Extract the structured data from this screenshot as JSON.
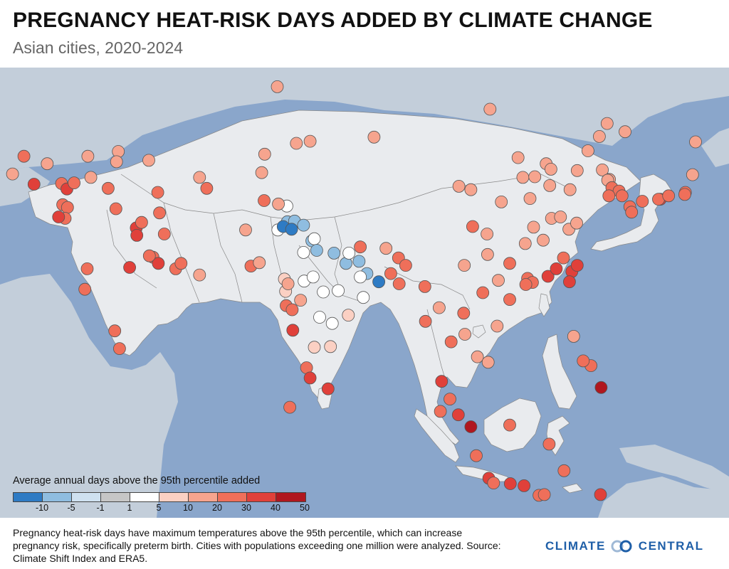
{
  "header": {
    "title": "PREGNANCY HEAT-RISK DAYS ADDED BY CLIMATE CHANGE",
    "subtitle": "Asian cities, 2020-2024"
  },
  "legend": {
    "title": "Average annual days above the 95th percentile added",
    "ticks": [
      "-10",
      "-5",
      "-1",
      "1",
      "5",
      "10",
      "20",
      "30",
      "40",
      "50"
    ],
    "colors": [
      "#2e7bc4",
      "#8fbde0",
      "#cfe1f0",
      "#c6c6c6",
      "#ffffff",
      "#fbd0c3",
      "#f6a48e",
      "#ef6f5a",
      "#e0403a",
      "#b0171f"
    ]
  },
  "footnote": {
    "text": "Pregnancy heat-risk days have maximum temperatures above the 95th percentile, which can increase pregnancy risk, specifically preterm birth. Cities with populations exceeding one million were analyzed. Source: Climate Shift Index and ERA5."
  },
  "logo": {
    "left": "CLIMATE",
    "right": "CENTRAL",
    "brand_color": "#1f5fa8"
  },
  "map": {
    "ocean_color": "#8aa6cb",
    "focus_land_color": "#e9ebee",
    "outside_land_color": "#c3ceda",
    "border_color": "#888888",
    "cities": [
      {
        "lon": 71.4,
        "lat": 51.2,
        "v": 12
      },
      {
        "lon": 76.9,
        "lat": 43.2,
        "v": 12
      },
      {
        "lon": 69.3,
        "lat": 41.3,
        "v": 11
      },
      {
        "lon": 58.4,
        "lat": 37.9,
        "v": 15
      },
      {
        "lon": 68.8,
        "lat": 38.6,
        "v": 14
      },
      {
        "lon": 74.6,
        "lat": 42.9,
        "v": 12
      },
      {
        "lon": 107,
        "lat": 47.9,
        "v": 14
      },
      {
        "lon": 87.6,
        "lat": 43.8,
        "v": 11
      },
      {
        "lon": 29.0,
        "lat": 41.0,
        "v": 22
      },
      {
        "lon": 32.9,
        "lat": 39.9,
        "v": 15
      },
      {
        "lon": 27.1,
        "lat": 38.4,
        "v": 18
      },
      {
        "lon": 30.7,
        "lat": 36.9,
        "v": 30
      },
      {
        "lon": 35.3,
        "lat": 37.0,
        "v": 28
      },
      {
        "lon": 36.2,
        "lat": 36.2,
        "v": 30
      },
      {
        "lon": 37.4,
        "lat": 37.1,
        "v": 22
      },
      {
        "lon": 40.2,
        "lat": 37.9,
        "v": 18
      },
      {
        "lon": 39.7,
        "lat": 41.0,
        "v": 16
      },
      {
        "lon": 44.8,
        "lat": 41.7,
        "v": 17
      },
      {
        "lon": 44.5,
        "lat": 40.2,
        "v": 18
      },
      {
        "lon": 49.9,
        "lat": 40.4,
        "v": 14
      },
      {
        "lon": 35.5,
        "lat": 33.9,
        "v": 28
      },
      {
        "lon": 36.3,
        "lat": 33.5,
        "v": 26
      },
      {
        "lon": 35.9,
        "lat": 31.9,
        "v": 25
      },
      {
        "lon": 34.8,
        "lat": 32.1,
        "v": 32
      },
      {
        "lon": 44.4,
        "lat": 33.3,
        "v": 24
      },
      {
        "lon": 43.1,
        "lat": 36.3,
        "v": 20
      },
      {
        "lon": 47.8,
        "lat": 30.5,
        "v": 30
      },
      {
        "lon": 51.4,
        "lat": 35.7,
        "v": 22
      },
      {
        "lon": 59.6,
        "lat": 36.3,
        "v": 22
      },
      {
        "lon": 51.7,
        "lat": 32.7,
        "v": 25
      },
      {
        "lon": 52.5,
        "lat": 29.6,
        "v": 25
      },
      {
        "lon": 48.7,
        "lat": 31.3,
        "v": 28
      },
      {
        "lon": 47.9,
        "lat": 29.4,
        "v": 30
      },
      {
        "lon": 50.6,
        "lat": 26.2,
        "v": 28
      },
      {
        "lon": 51.5,
        "lat": 25.3,
        "v": 30
      },
      {
        "lon": 54.4,
        "lat": 24.5,
        "v": 28
      },
      {
        "lon": 55.3,
        "lat": 25.3,
        "v": 26
      },
      {
        "lon": 58.4,
        "lat": 23.6,
        "v": 10
      },
      {
        "lon": 46.7,
        "lat": 24.7,
        "v": 30
      },
      {
        "lon": 39.2,
        "lat": 21.5,
        "v": 28
      },
      {
        "lon": 39.6,
        "lat": 24.5,
        "v": 26
      },
      {
        "lon": 44.2,
        "lat": 15.4,
        "v": 22
      },
      {
        "lon": 45.0,
        "lat": 12.8,
        "v": 22
      },
      {
        "lon": 50.0,
        "lat": 26.4,
        "v": 26
      },
      {
        "lon": 67.0,
        "lat": 24.9,
        "v": 22
      },
      {
        "lon": 68.4,
        "lat": 25.4,
        "v": 18
      },
      {
        "lon": 71.5,
        "lat": 30.2,
        "v": 2
      },
      {
        "lon": 73.1,
        "lat": 31.4,
        "v": -3
      },
      {
        "lon": 74.3,
        "lat": 31.5,
        "v": -2
      },
      {
        "lon": 73.0,
        "lat": 33.7,
        "v": 2
      },
      {
        "lon": 71.6,
        "lat": 34.0,
        "v": 12
      },
      {
        "lon": 69.2,
        "lat": 34.5,
        "v": 20
      },
      {
        "lon": 66.1,
        "lat": 30.2,
        "v": 14
      },
      {
        "lon": 72.4,
        "lat": 30.7,
        "v": -8
      },
      {
        "lon": 73.8,
        "lat": 30.3,
        "v": -7
      },
      {
        "lon": 77.2,
        "lat": 28.6,
        "v": -2
      },
      {
        "lon": 75.8,
        "lat": 30.9,
        "v": -3
      },
      {
        "lon": 77.6,
        "lat": 28.9,
        "v": 1
      },
      {
        "lon": 75.8,
        "lat": 26.9,
        "v": 3
      },
      {
        "lon": 78.0,
        "lat": 27.2,
        "v": -1
      },
      {
        "lon": 80.9,
        "lat": 26.8,
        "v": -2
      },
      {
        "lon": 82.9,
        "lat": 25.3,
        "v": -1
      },
      {
        "lon": 85.1,
        "lat": 25.6,
        "v": -3
      },
      {
        "lon": 83.4,
        "lat": 26.8,
        "v": 1
      },
      {
        "lon": 88.4,
        "lat": 22.6,
        "v": -5
      },
      {
        "lon": 86.4,
        "lat": 23.8,
        "v": -1
      },
      {
        "lon": 85.3,
        "lat": 23.3,
        "v": 1
      },
      {
        "lon": 90.4,
        "lat": 23.8,
        "v": 25
      },
      {
        "lon": 91.8,
        "lat": 22.3,
        "v": 28
      },
      {
        "lon": 91.7,
        "lat": 26.1,
        "v": 22
      },
      {
        "lon": 85.3,
        "lat": 27.7,
        "v": 20
      },
      {
        "lon": 89.6,
        "lat": 27.5,
        "v": 16
      },
      {
        "lon": 92.9,
        "lat": 25.0,
        "v": 20
      },
      {
        "lon": 72.6,
        "lat": 23.0,
        "v": 5
      },
      {
        "lon": 72.8,
        "lat": 21.2,
        "v": 8
      },
      {
        "lon": 73.2,
        "lat": 22.3,
        "v": 12
      },
      {
        "lon": 75.9,
        "lat": 22.7,
        "v": 2
      },
      {
        "lon": 77.4,
        "lat": 23.3,
        "v": 3
      },
      {
        "lon": 79.1,
        "lat": 21.1,
        "v": 4
      },
      {
        "lon": 81.6,
        "lat": 21.3,
        "v": 3
      },
      {
        "lon": 85.8,
        "lat": 20.3,
        "v": 3
      },
      {
        "lon": 72.9,
        "lat": 19.1,
        "v": 25
      },
      {
        "lon": 73.9,
        "lat": 18.5,
        "v": 20
      },
      {
        "lon": 75.3,
        "lat": 19.9,
        "v": 10
      },
      {
        "lon": 78.5,
        "lat": 17.4,
        "v": 4
      },
      {
        "lon": 83.3,
        "lat": 17.7,
        "v": 5
      },
      {
        "lon": 80.6,
        "lat": 16.5,
        "v": 4
      },
      {
        "lon": 74.0,
        "lat": 15.5,
        "v": 30
      },
      {
        "lon": 77.6,
        "lat": 13.0,
        "v": 8
      },
      {
        "lon": 80.3,
        "lat": 13.1,
        "v": 6
      },
      {
        "lon": 76.3,
        "lat": 10.0,
        "v": 26
      },
      {
        "lon": 76.9,
        "lat": 8.5,
        "v": 30
      },
      {
        "lon": 79.9,
        "lat": 6.9,
        "v": 30
      },
      {
        "lon": 73.5,
        "lat": 4.2,
        "v": 28
      },
      {
        "lon": 96.2,
        "lat": 16.8,
        "v": 24
      },
      {
        "lon": 96.1,
        "lat": 21.9,
        "v": 24
      },
      {
        "lon": 98.5,
        "lat": 18.8,
        "v": 18
      },
      {
        "lon": 100.5,
        "lat": 13.8,
        "v": 22
      },
      {
        "lon": 102.6,
        "lat": 18.0,
        "v": 22
      },
      {
        "lon": 102.8,
        "lat": 14.9,
        "v": 14
      },
      {
        "lon": 104.9,
        "lat": 11.6,
        "v": 18
      },
      {
        "lon": 105.8,
        "lat": 21.0,
        "v": 24
      },
      {
        "lon": 106.7,
        "lat": 10.8,
        "v": 18
      },
      {
        "lon": 108.2,
        "lat": 16.1,
        "v": 16
      },
      {
        "lon": 98.9,
        "lat": 8.0,
        "v": 30
      },
      {
        "lon": 100.3,
        "lat": 5.4,
        "v": 28
      },
      {
        "lon": 101.7,
        "lat": 3.1,
        "v": 35
      },
      {
        "lon": 103.8,
        "lat": 1.35,
        "v": 46
      },
      {
        "lon": 98.7,
        "lat": 3.6,
        "v": 28
      },
      {
        "lon": 104.7,
        "lat": -2.9,
        "v": 26
      },
      {
        "lon": 106.8,
        "lat": -6.2,
        "v": 30
      },
      {
        "lon": 107.6,
        "lat": -6.9,
        "v": 28
      },
      {
        "lon": 110.4,
        "lat": -7.0,
        "v": 30
      },
      {
        "lon": 112.7,
        "lat": -7.3,
        "v": 30
      },
      {
        "lon": 115.2,
        "lat": -8.7,
        "v": 26
      },
      {
        "lon": 116.1,
        "lat": -8.6,
        "v": 26
      },
      {
        "lon": 119.4,
        "lat": -5.1,
        "v": 28
      },
      {
        "lon": 125.5,
        "lat": -8.6,
        "v": 30
      },
      {
        "lon": 116.9,
        "lat": -1.2,
        "v": 22
      },
      {
        "lon": 110.3,
        "lat": 1.6,
        "v": 26
      },
      {
        "lon": 125.6,
        "lat": 7.1,
        "v": 40
      },
      {
        "lon": 121.0,
        "lat": 14.6,
        "v": 15
      },
      {
        "lon": 123.9,
        "lat": 10.3,
        "v": 24
      },
      {
        "lon": 122.6,
        "lat": 11.0,
        "v": 20
      },
      {
        "lon": 113.3,
        "lat": 23.1,
        "v": 26
      },
      {
        "lon": 114.1,
        "lat": 22.5,
        "v": 28
      },
      {
        "lon": 113.0,
        "lat": 22.2,
        "v": 25
      },
      {
        "lon": 110.3,
        "lat": 20.0,
        "v": 26
      },
      {
        "lon": 108.4,
        "lat": 22.8,
        "v": 18
      },
      {
        "lon": 110.3,
        "lat": 25.3,
        "v": 20
      },
      {
        "lon": 116.7,
        "lat": 23.4,
        "v": 30
      },
      {
        "lon": 118.1,
        "lat": 24.5,
        "v": 30
      },
      {
        "lon": 119.3,
        "lat": 26.1,
        "v": 28
      },
      {
        "lon": 120.7,
        "lat": 24.1,
        "v": 30
      },
      {
        "lon": 121.6,
        "lat": 25.0,
        "v": 30
      },
      {
        "lon": 120.3,
        "lat": 22.6,
        "v": 30
      },
      {
        "lon": 115.9,
        "lat": 28.7,
        "v": 14
      },
      {
        "lon": 112.9,
        "lat": 28.2,
        "v": 16
      },
      {
        "lon": 114.3,
        "lat": 30.6,
        "v": 15
      },
      {
        "lon": 106.6,
        "lat": 26.6,
        "v": 14
      },
      {
        "lon": 102.7,
        "lat": 25.0,
        "v": 18
      },
      {
        "lon": 104.1,
        "lat": 30.7,
        "v": 22
      },
      {
        "lon": 106.5,
        "lat": 29.6,
        "v": 16
      },
      {
        "lon": 108.9,
        "lat": 34.3,
        "v": 14
      },
      {
        "lon": 103.8,
        "lat": 36.1,
        "v": 14
      },
      {
        "lon": 101.8,
        "lat": 36.6,
        "v": 12
      },
      {
        "lon": 111.7,
        "lat": 40.8,
        "v": 14
      },
      {
        "lon": 112.5,
        "lat": 37.9,
        "v": 10
      },
      {
        "lon": 113.7,
        "lat": 34.8,
        "v": 10
      },
      {
        "lon": 117.3,
        "lat": 31.9,
        "v": 10
      },
      {
        "lon": 118.8,
        "lat": 32.1,
        "v": 10
      },
      {
        "lon": 120.2,
        "lat": 30.3,
        "v": 12
      },
      {
        "lon": 121.5,
        "lat": 31.2,
        "v": 16
      },
      {
        "lon": 117.0,
        "lat": 36.7,
        "v": 10
      },
      {
        "lon": 120.4,
        "lat": 36.1,
        "v": 12
      },
      {
        "lon": 116.4,
        "lat": 39.9,
        "v": 12
      },
      {
        "lon": 117.2,
        "lat": 39.1,
        "v": 12
      },
      {
        "lon": 114.5,
        "lat": 38.0,
        "v": 10
      },
      {
        "lon": 123.4,
        "lat": 41.8,
        "v": 14
      },
      {
        "lon": 121.6,
        "lat": 38.9,
        "v": 14
      },
      {
        "lon": 125.3,
        "lat": 43.9,
        "v": 16
      },
      {
        "lon": 126.6,
        "lat": 45.8,
        "v": 16
      },
      {
        "lon": 129.6,
        "lat": 44.6,
        "v": 18
      },
      {
        "lon": 125.8,
        "lat": 39.0,
        "v": 16
      },
      {
        "lon": 127.0,
        "lat": 37.6,
        "v": 18
      },
      {
        "lon": 126.7,
        "lat": 37.5,
        "v": 18
      },
      {
        "lon": 127.4,
        "lat": 36.4,
        "v": 20
      },
      {
        "lon": 128.6,
        "lat": 35.9,
        "v": 20
      },
      {
        "lon": 129.1,
        "lat": 35.2,
        "v": 22
      },
      {
        "lon": 126.9,
        "lat": 35.2,
        "v": 20
      },
      {
        "lon": 130.4,
        "lat": 33.6,
        "v": 26
      },
      {
        "lon": 132.5,
        "lat": 34.4,
        "v": 26
      },
      {
        "lon": 135.5,
        "lat": 34.7,
        "v": 30
      },
      {
        "lon": 135.2,
        "lat": 34.7,
        "v": 28
      },
      {
        "lon": 136.9,
        "lat": 35.2,
        "v": 26
      },
      {
        "lon": 139.7,
        "lat": 35.7,
        "v": 26
      },
      {
        "lon": 139.6,
        "lat": 35.4,
        "v": 24
      },
      {
        "lon": 140.9,
        "lat": 38.3,
        "v": 18
      },
      {
        "lon": 141.4,
        "lat": 43.1,
        "v": 14
      },
      {
        "lon": 130.7,
        "lat": 32.8,
        "v": 24
      }
    ]
  }
}
